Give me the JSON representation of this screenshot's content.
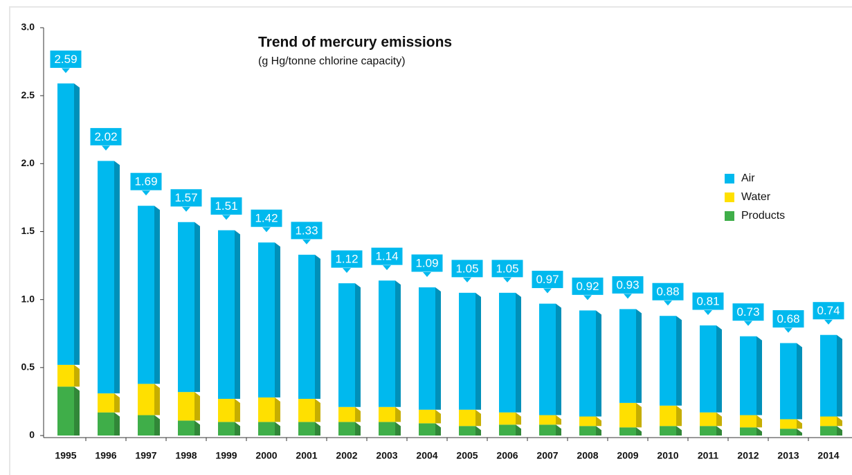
{
  "chart_data": {
    "type": "stacked_bar",
    "title": "Trend of mercury emissions",
    "subtitle": "(g Hg/tonne chlorine capacity)",
    "categories": [
      "1995",
      "1996",
      "1997",
      "1998",
      "1999",
      "2000",
      "2001",
      "2002",
      "2003",
      "2004",
      "2005",
      "2006",
      "2007",
      "2008",
      "2009",
      "2010",
      "2011",
      "2012",
      "2013",
      "2014"
    ],
    "series": [
      {
        "name": "Air",
        "color": "#00b9ee",
        "values": [
          2.07,
          1.71,
          1.31,
          1.25,
          1.24,
          1.14,
          1.06,
          0.91,
          0.93,
          0.9,
          0.86,
          0.88,
          0.82,
          0.78,
          0.69,
          0.66,
          0.64,
          0.58,
          0.56,
          0.6
        ]
      },
      {
        "name": "Water",
        "color": "#ffe000",
        "values": [
          0.16,
          0.14,
          0.23,
          0.21,
          0.17,
          0.18,
          0.17,
          0.11,
          0.11,
          0.1,
          0.12,
          0.09,
          0.07,
          0.07,
          0.18,
          0.15,
          0.1,
          0.09,
          0.07,
          0.07
        ]
      },
      {
        "name": "Products",
        "color": "#3fae49",
        "values": [
          0.36,
          0.17,
          0.15,
          0.11,
          0.1,
          0.1,
          0.1,
          0.1,
          0.1,
          0.09,
          0.07,
          0.08,
          0.08,
          0.07,
          0.06,
          0.07,
          0.07,
          0.06,
          0.05,
          0.07
        ]
      }
    ],
    "totals": [
      2.59,
      2.02,
      1.69,
      1.57,
      1.51,
      1.42,
      1.33,
      1.12,
      1.14,
      1.09,
      1.05,
      1.05,
      0.97,
      0.92,
      0.93,
      0.88,
      0.81,
      0.73,
      0.68,
      0.74
    ],
    "ylim": [
      0,
      3
    ],
    "yticks": [
      0,
      0.5,
      {
        "value": 1,
        "label": "1.0"
      },
      1.5,
      {
        "value": 2,
        "label": "2.0"
      },
      2.5,
      {
        "value": 3,
        "label": "3.0"
      }
    ],
    "legend": "right"
  }
}
